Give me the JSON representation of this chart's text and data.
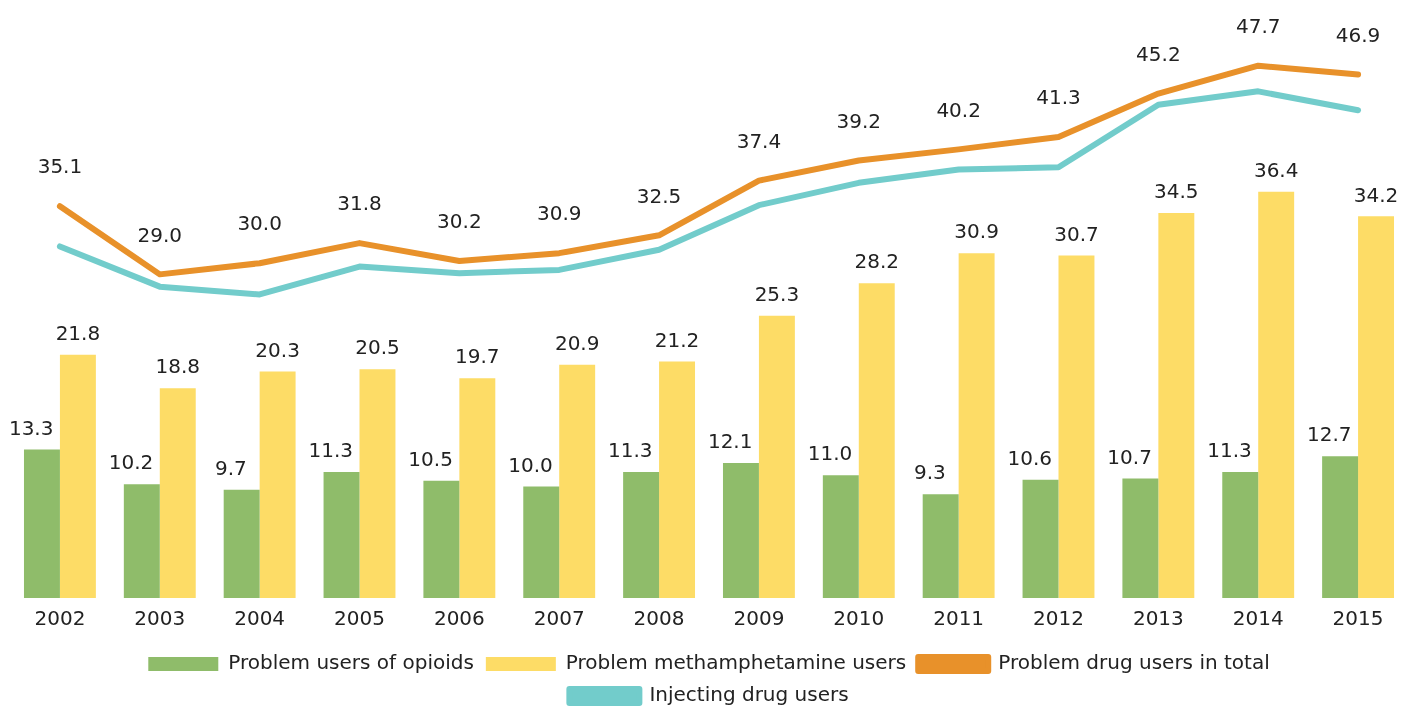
{
  "chart_data": {
    "type": "bar",
    "categories": [
      "2002",
      "2003",
      "2004",
      "2005",
      "2006",
      "2007",
      "2008",
      "2009",
      "2010",
      "2011",
      "2012",
      "2013",
      "2014",
      "2015"
    ],
    "tick_labels": "x",
    "grid": false,
    "legend": "bottom",
    "marker": "none",
    "series": [
      {
        "name": "Problem users of opioids",
        "color": "#8fbc6a",
        "values": [
          13.3,
          10.2,
          9.7,
          11.3,
          10.5,
          10.0,
          11.3,
          12.1,
          11.0,
          9.3,
          10.6,
          10.7,
          11.3,
          12.7
        ],
        "value_labels": [
          "13.3",
          "10.2",
          "9.7",
          "11.3",
          "10.5",
          "10.0",
          "11.3",
          "12.1",
          "11.0",
          "9.3",
          "10.6",
          "10.7",
          "11.3",
          "12.7"
        ]
      },
      {
        "name": "Problem methamphetamine users",
        "color": "#fddc66",
        "values": [
          21.8,
          18.8,
          20.3,
          20.5,
          19.7,
          20.9,
          21.2,
          25.3,
          28.2,
          30.9,
          30.7,
          34.5,
          36.4,
          34.2
        ],
        "value_labels": [
          "21.8",
          "18.8",
          "20.3",
          "20.5",
          "19.7",
          "20.9",
          "21.2",
          "25.3",
          "28.2",
          "30.9",
          "30.7",
          "34.5",
          "36.4",
          "34.2"
        ]
      },
      {
        "name": "Problem drug users in total",
        "color": "#e8912a",
        "type": "line",
        "values": [
          35.1,
          29.0,
          30.0,
          31.8,
          30.2,
          30.9,
          32.5,
          37.4,
          39.2,
          40.2,
          41.3,
          45.2,
          47.7,
          46.9
        ],
        "value_labels": [
          "35.1",
          "29.0",
          "30.0",
          "31.8",
          "30.2",
          "30.9",
          "32.5",
          "37.4",
          "39.2",
          "40.2",
          "41.3",
          "45.2",
          "47.7",
          "46.9"
        ]
      },
      {
        "name": "Injecting drug users",
        "color": "#72cccb",
        "type": "line",
        "values": [
          31.5,
          27.9,
          27.2,
          29.7,
          29.1,
          29.4,
          31.2,
          35.2,
          37.2,
          38.4,
          38.6,
          44.2,
          45.4,
          43.7
        ]
      }
    ]
  }
}
